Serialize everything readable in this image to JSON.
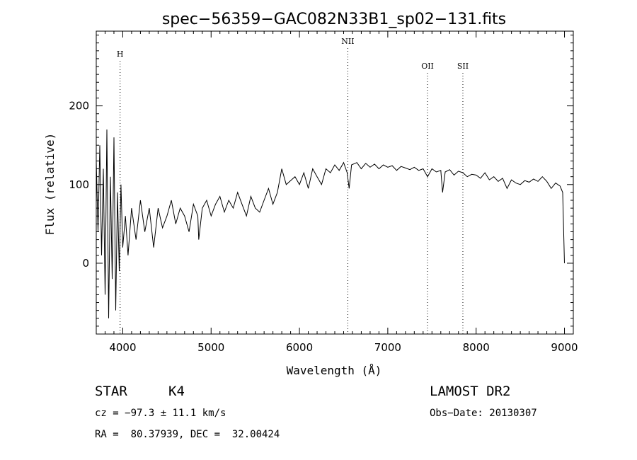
{
  "chart_data": {
    "type": "line",
    "title": "spec−56359−GAC082N33B1_sp02−131.fits",
    "xlabel": "Wavelength (Å)",
    "ylabel": "Flux (relative)",
    "xlim": [
      3700,
      9100
    ],
    "ylim": [
      -90,
      295
    ],
    "xticks": [
      4000,
      5000,
      6000,
      7000,
      8000,
      9000
    ],
    "yticks": [
      0,
      100,
      200
    ],
    "grid": false,
    "series": [
      {
        "x": [
          3700,
          3720,
          3740,
          3760,
          3780,
          3800,
          3820,
          3840,
          3860,
          3880,
          3900,
          3920,
          3940,
          3960,
          3980,
          4000,
          4030,
          4060,
          4100,
          4150,
          4200,
          4250,
          4300,
          4350,
          4400,
          4450,
          4500,
          4550,
          4600,
          4650,
          4700,
          4750,
          4800,
          4850,
          4860,
          4900,
          4950,
          5000,
          5050,
          5100,
          5150,
          5200,
          5250,
          5300,
          5350,
          5400,
          5450,
          5500,
          5550,
          5600,
          5650,
          5700,
          5750,
          5800,
          5850,
          5900,
          5950,
          6000,
          6050,
          6100,
          6150,
          6200,
          6250,
          6300,
          6350,
          6400,
          6450,
          6500,
          6540,
          6563,
          6590,
          6650,
          6700,
          6750,
          6800,
          6850,
          6900,
          6950,
          7000,
          7050,
          7100,
          7150,
          7200,
          7250,
          7300,
          7350,
          7400,
          7450,
          7500,
          7550,
          7600,
          7620,
          7650,
          7700,
          7750,
          7800,
          7850,
          7900,
          7950,
          8000,
          8050,
          8100,
          8150,
          8200,
          8250,
          8300,
          8350,
          8400,
          8450,
          8500,
          8550,
          8600,
          8650,
          8700,
          8750,
          8800,
          8850,
          8900,
          8950,
          8980,
          9000
        ],
        "y": [
          130,
          40,
          150,
          10,
          120,
          -40,
          170,
          -70,
          110,
          -20,
          160,
          -60,
          90,
          -10,
          100,
          20,
          60,
          10,
          70,
          30,
          80,
          40,
          70,
          20,
          70,
          45,
          60,
          80,
          50,
          70,
          60,
          40,
          75,
          60,
          30,
          70,
          80,
          60,
          75,
          85,
          65,
          80,
          70,
          90,
          75,
          60,
          85,
          70,
          65,
          80,
          95,
          75,
          90,
          120,
          100,
          105,
          110,
          100,
          115,
          95,
          120,
          110,
          100,
          120,
          115,
          125,
          118,
          128,
          115,
          95,
          125,
          128,
          120,
          127,
          122,
          126,
          120,
          125,
          122,
          124,
          118,
          123,
          121,
          119,
          122,
          118,
          120,
          110,
          120,
          116,
          118,
          90,
          116,
          119,
          112,
          117,
          115,
          110,
          113,
          112,
          108,
          115,
          106,
          110,
          104,
          108,
          95,
          106,
          102,
          100,
          105,
          103,
          107,
          104,
          110,
          104,
          95,
          102,
          98,
          90,
          0
        ]
      }
    ],
    "lines": [
      {
        "label": "H",
        "x": 3970
      },
      {
        "label": "NII",
        "x": 6548
      },
      {
        "label": "OII",
        "x": 7450
      },
      {
        "label": "SII",
        "x": 7850
      }
    ]
  },
  "info": {
    "object_class": "STAR",
    "subclass": "K4",
    "survey": "LAMOST DR2",
    "cz": "cz = −97.3 ± 11.1 km/s",
    "obs_date": "Obs−Date: 20130307",
    "coords": "RA =  80.37939, DEC =  32.00424"
  }
}
